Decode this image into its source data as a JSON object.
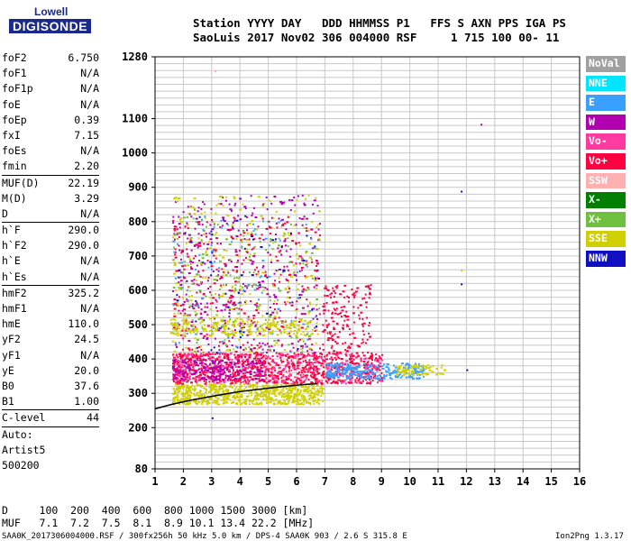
{
  "logo": {
    "top": "Lowell",
    "main": "DIGISONDE"
  },
  "header": {
    "line1": "Station YYYY DAY   DDD HHMMSS P1   FFS S AXN PPS IGA PS",
    "line2": "SaoLuis 2017 Nov02 306 004000 RSF     1 715 100 00- 11"
  },
  "params": [
    {
      "label": "foF2",
      "value": "6.750"
    },
    {
      "label": "foF1",
      "value": "N/A"
    },
    {
      "label": "foF1p",
      "value": "N/A"
    },
    {
      "label": "foE",
      "value": "N/A"
    },
    {
      "label": "foEp",
      "value": "0.39"
    },
    {
      "label": "fxI",
      "value": "7.15"
    },
    {
      "label": "foEs",
      "value": "N/A"
    },
    {
      "label": "fmin",
      "value": "2.20"
    },
    {
      "label": "MUF(D)",
      "value": "22.19"
    },
    {
      "label": "M(D)",
      "value": "3.29"
    },
    {
      "label": "D",
      "value": "N/A"
    },
    {
      "label": "h`F",
      "value": "290.0"
    },
    {
      "label": "h`F2",
      "value": "290.0"
    },
    {
      "label": "h`E",
      "value": "N/A"
    },
    {
      "label": "h`Es",
      "value": "N/A"
    },
    {
      "label": "hmF2",
      "value": "325.2"
    },
    {
      "label": "hmF1",
      "value": "N/A"
    },
    {
      "label": "hmE",
      "value": "110.0"
    },
    {
      "label": "yF2",
      "value": "24.5"
    },
    {
      "label": "yF1",
      "value": "N/A"
    },
    {
      "label": "yE",
      "value": "20.0"
    },
    {
      "label": "B0",
      "value": "37.6"
    },
    {
      "label": "B1",
      "value": "1.00"
    },
    {
      "label": "C-level",
      "value": "44"
    }
  ],
  "auto": {
    "line1": "Auto:",
    "line2": "Artist5",
    "line3": "500200"
  },
  "legend": [
    {
      "label": "NoVal",
      "color": "#a0a0a0"
    },
    {
      "label": "NNE",
      "color": "#00e5ff"
    },
    {
      "label": "E",
      "color": "#3aa0ff"
    },
    {
      "label": "W",
      "color": "#b000b0"
    },
    {
      "label": "Vo-",
      "color": "#ff3aa0"
    },
    {
      "label": "Vo+",
      "color": "#ff0040"
    },
    {
      "label": "SSW",
      "color": "#ffb0b0"
    },
    {
      "label": "X-",
      "color": "#008000"
    },
    {
      "label": "X+",
      "color": "#70c040"
    },
    {
      "label": "SSE",
      "color": "#d0d000"
    },
    {
      "label": "NNW",
      "color": "#1010c0"
    }
  ],
  "footer": {
    "line1": "D     100  200  400  600  800 1000 1500 3000 [km]",
    "line2": "MUF   7.1  7.2  7.5  8.1  8.9 10.1 13.4 22.2 [MHz]",
    "filename": "SAA0K_2017306004000.RSF / 300fx256h 50 kHz 5.0 km / DPS-4 SAA0K 903 / 2.6 S 315.8 E",
    "version": "Ion2Png 1.3.17"
  },
  "chart_data": {
    "type": "scatter",
    "xlim": [
      1,
      16
    ],
    "ylim": [
      80,
      1280
    ],
    "x_ticks": [
      "1",
      "2",
      "3",
      "4",
      "5",
      "6",
      "7",
      "8",
      "9",
      "10",
      "11",
      "12",
      "13",
      "14",
      "15",
      "16"
    ],
    "y_ticks": [
      {
        "value": 80,
        "label": "80"
      },
      {
        "value": 200,
        "label": "200"
      },
      {
        "value": 300,
        "label": "300"
      },
      {
        "value": 400,
        "label": "400"
      },
      {
        "value": 500,
        "label": "500"
      },
      {
        "value": 600,
        "label": "600"
      },
      {
        "value": 700,
        "label": "700"
      },
      {
        "value": 800,
        "label": "800"
      },
      {
        "value": 900,
        "label": "900"
      },
      {
        "value": 1000,
        "label": "1000"
      },
      {
        "value": 1100,
        "label": "1100"
      },
      {
        "value": 1280,
        "label": "1280"
      }
    ],
    "y_grid_step": 20,
    "trace": {
      "x": [
        1.0,
        1.6,
        2.2,
        2.8,
        3.4,
        4.0,
        4.6,
        5.2,
        5.8,
        6.3,
        6.75
      ],
      "y": [
        255,
        268,
        279,
        288,
        297,
        305,
        311,
        317,
        322,
        326,
        328
      ],
      "color": "#000000"
    },
    "clusters": [
      {
        "x": [
          1.6,
          6.9
        ],
        "y": [
          270,
          330
        ],
        "color": "#d0d000",
        "n": 700
      },
      {
        "x": [
          1.6,
          9.0
        ],
        "y": [
          330,
          420
        ],
        "color": "#ff0040",
        "n": 900
      },
      {
        "x": [
          1.6,
          9.0
        ],
        "y": [
          330,
          420
        ],
        "color": "#ff3aa0",
        "n": 350
      },
      {
        "x": [
          7.0,
          10.5
        ],
        "y": [
          345,
          390
        ],
        "color": "#3aa0ff",
        "n": 260
      },
      {
        "x": [
          9.5,
          11.2
        ],
        "y": [
          355,
          385
        ],
        "color": "#d0d000",
        "n": 80
      },
      {
        "x": [
          1.6,
          6.8
        ],
        "y": [
          420,
          880
        ],
        "color": "#b000b0",
        "n": 380
      },
      {
        "x": [
          1.6,
          6.8
        ],
        "y": [
          420,
          880
        ],
        "color": "#d0d000",
        "n": 260
      },
      {
        "x": [
          1.6,
          6.8
        ],
        "y": [
          420,
          820
        ],
        "color": "#ff0040",
        "n": 280
      },
      {
        "x": [
          1.6,
          6.8
        ],
        "y": [
          420,
          820
        ],
        "color": "#70c040",
        "n": 160
      },
      {
        "x": [
          1.6,
          6.8
        ],
        "y": [
          420,
          820
        ],
        "color": "#3aa0ff",
        "n": 90
      },
      {
        "x": [
          1.6,
          6.8
        ],
        "y": [
          420,
          820
        ],
        "color": "#1010c0",
        "n": 60
      },
      {
        "x": [
          6.9,
          8.6
        ],
        "y": [
          420,
          620
        ],
        "color": "#ff0040",
        "n": 160
      },
      {
        "x": [
          1.5,
          6.6
        ],
        "y": [
          470,
          520
        ],
        "color": "#d0d000",
        "n": 220
      },
      {
        "x": [
          1.6,
          4.8
        ],
        "y": [
          340,
          400
        ],
        "color": "#b000b0",
        "n": 200
      }
    ],
    "outliers": [
      {
        "x": 12.5,
        "y": 1085,
        "color": "#b000b0"
      },
      {
        "x": 11.8,
        "y": 890,
        "color": "#1010c0"
      },
      {
        "x": 3.1,
        "y": 1240,
        "color": "#ffb0b0"
      },
      {
        "x": 11.8,
        "y": 660,
        "color": "#d0d000"
      },
      {
        "x": 11.8,
        "y": 620,
        "color": "#1010c0"
      },
      {
        "x": 12.0,
        "y": 370,
        "color": "#1010c0"
      },
      {
        "x": 3.0,
        "y": 230,
        "color": "#1010c0"
      }
    ]
  }
}
